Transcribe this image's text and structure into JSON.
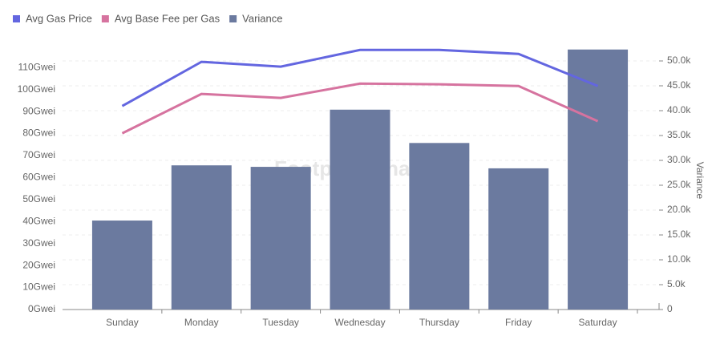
{
  "chart_data": {
    "type": "bar_line",
    "watermark": "Footprint Analytics",
    "y2_label": "Variance",
    "categories": [
      "Sunday",
      "Monday",
      "Tuesday",
      "Wednesday",
      "Thursday",
      "Friday",
      "Saturday"
    ],
    "series": [
      {
        "name": "Avg Gas Price",
        "type": "line",
        "axis": "y",
        "color": "#6366e0",
        "values": [
          92.5,
          112.6,
          110.4,
          118.0,
          118.0,
          116.2,
          101.6
        ]
      },
      {
        "name": "Avg Base Fee per Gas",
        "type": "line",
        "axis": "y",
        "color": "#d6739f",
        "values": [
          80.1,
          98.0,
          96.2,
          102.7,
          102.4,
          101.6,
          85.6
        ]
      },
      {
        "name": "Variance",
        "type": "bar",
        "axis": "y2",
        "color": "#6b7a9f",
        "values": [
          17900,
          29000,
          28700,
          40200,
          33500,
          28400,
          52300
        ]
      }
    ],
    "ylim": [
      0,
      113
    ],
    "yticks": [
      {
        "value": 0,
        "label": "0Gwei"
      },
      {
        "value": 10,
        "label": "10Gwei"
      },
      {
        "value": 20,
        "label": "20Gwei"
      },
      {
        "value": 30,
        "label": "30Gwei"
      },
      {
        "value": 40,
        "label": "40Gwei"
      },
      {
        "value": 50,
        "label": "50Gwei"
      },
      {
        "value": 60,
        "label": "60Gwei"
      },
      {
        "value": 70,
        "label": "70Gwei"
      },
      {
        "value": 80,
        "label": "80Gwei"
      },
      {
        "value": 90,
        "label": "90Gwei"
      },
      {
        "value": 100,
        "label": "100Gwei"
      },
      {
        "value": 110,
        "label": "110Gwei"
      }
    ],
    "y2lim": [
      0,
      50000
    ],
    "y2ticks": [
      0,
      {
        "value": 5000,
        "label": "5.0k"
      },
      {
        "value": 10000,
        "label": "10.0k"
      },
      {
        "value": 15000,
        "label": "15.0k"
      },
      {
        "value": 20000,
        "label": "20.0k"
      },
      {
        "value": 25000,
        "label": "25.0k"
      },
      {
        "value": 30000,
        "label": "30.0k"
      },
      {
        "value": 35000,
        "label": "35.0k"
      },
      {
        "value": 40000,
        "label": "40.0k"
      },
      {
        "value": 45000,
        "label": "45.0k"
      },
      {
        "value": 50000,
        "label": "50.0k"
      }
    ],
    "grid": true
  }
}
